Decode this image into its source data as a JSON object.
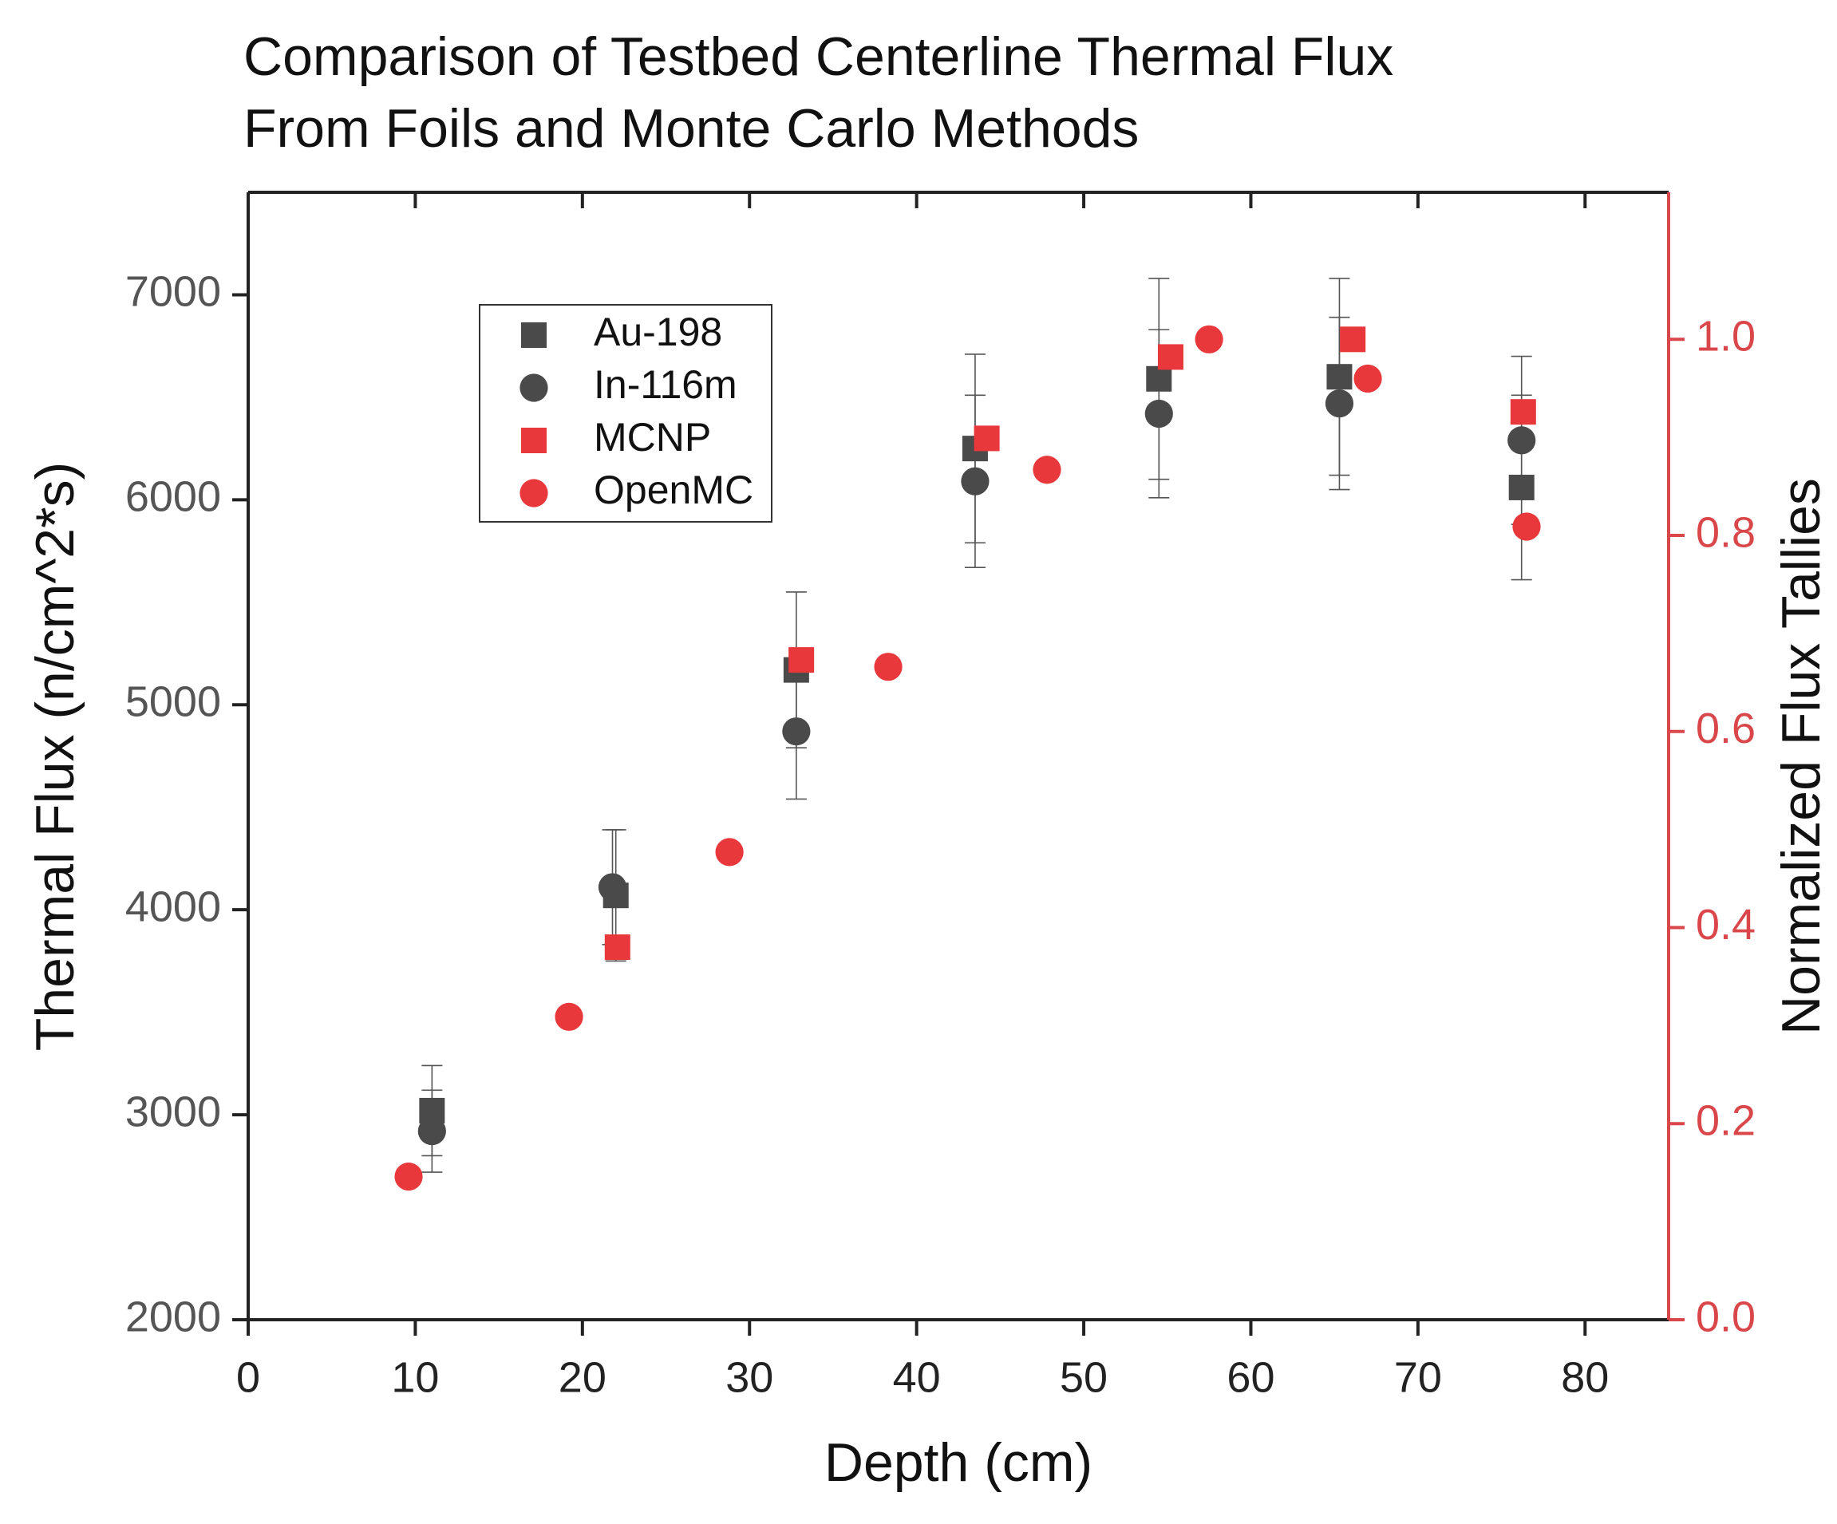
{
  "chart_data": {
    "type": "scatter",
    "title": [
      "Comparison of Testbed Centerline Thermal Flux",
      "From Foils and Monte Carlo Methods"
    ],
    "x_label": "Depth (cm)",
    "y_label": "Thermal Flux (n/cm^2*s)",
    "y2_label": "Normalized Flux Tallies",
    "xlim": [
      0,
      85
    ],
    "xticks": [
      0,
      10,
      20,
      30,
      40,
      50,
      60,
      70,
      80
    ],
    "ylim": [
      2000,
      7500
    ],
    "yticks": [
      2000,
      3000,
      4000,
      5000,
      6000,
      7000
    ],
    "y2lim": [
      0,
      1.15
    ],
    "y2ticks": [
      {
        "value": 0,
        "label": "0.0"
      },
      0.2,
      0.4,
      0.6,
      0.8,
      {
        "value": 1,
        "label": "1.0"
      }
    ],
    "y2color": "#d9474a",
    "legend": "upper left",
    "series": [
      {
        "name": "Au-198",
        "color": "#4a4a4a",
        "marker": "square",
        "x": [
          11,
          22,
          32.8,
          43.5,
          54.5,
          65.3,
          76.2
        ],
        "values": [
          3020,
          4070,
          5170,
          6250,
          6590,
          6600,
          6060
        ],
        "errors": [
          220,
          320,
          380,
          460,
          490,
          480,
          450
        ]
      },
      {
        "name": "In-116m",
        "color": "#4a4a4a",
        "marker": "circle",
        "x": [
          11,
          21.8,
          32.8,
          43.5,
          54.5,
          65.3,
          76.2
        ],
        "values": [
          2920,
          4110,
          4870,
          6090,
          6420,
          6470,
          6290
        ],
        "errors": [
          200,
          280,
          330,
          420,
          410,
          420,
          410
        ]
      },
      {
        "name": "MCNP",
        "color": "#e8383c",
        "marker": "square",
        "axis": "y2",
        "x": [
          22.1,
          33.1,
          44.2,
          55.2,
          66.1,
          76.3
        ],
        "values": [
          0.38,
          0.673,
          0.899,
          0.982,
          1.0,
          0.926
        ]
      },
      {
        "name": "OpenMC",
        "color": "#e8383c",
        "marker": "circle",
        "axis": "y2",
        "x": [
          9.6,
          19.2,
          28.8,
          38.3,
          47.8,
          57.5,
          67,
          76.5
        ],
        "values": [
          0.146,
          0.309,
          0.477,
          0.666,
          0.867,
          1.0,
          0.96,
          0.809
        ]
      }
    ]
  }
}
